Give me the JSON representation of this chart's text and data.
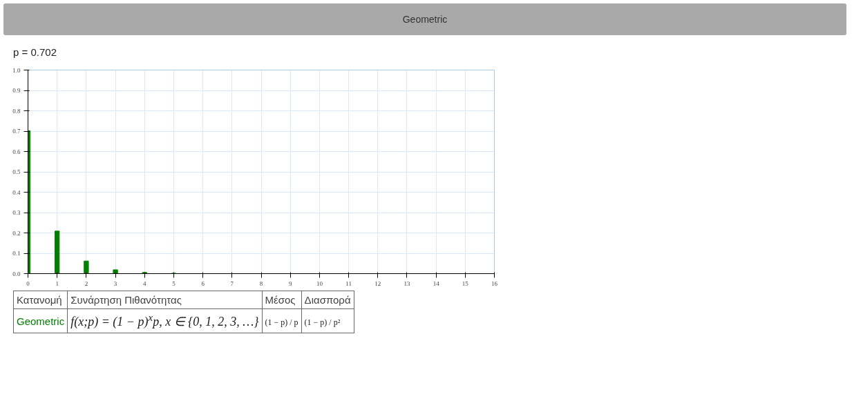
{
  "chart_data": {
    "type": "bar",
    "title": "Geometric",
    "x": [
      0,
      1,
      2,
      3,
      4,
      5,
      6,
      7,
      8,
      9,
      10,
      11,
      12,
      13,
      14,
      15
    ],
    "values": [
      0.702,
      0.209,
      0.062,
      0.019,
      0.006,
      0.002,
      0,
      0,
      0,
      0,
      0,
      0,
      0,
      0,
      0,
      0
    ],
    "color": "#008000",
    "xlim": [
      0,
      16
    ],
    "xticks": [
      0,
      1,
      2,
      3,
      4,
      5,
      6,
      7,
      8,
      9,
      10,
      11,
      12,
      13,
      14,
      15,
      16
    ],
    "ylim": [
      0,
      1
    ],
    "yticks": [
      {
        "value": 0,
        "label": "0.0"
      },
      0.1,
      0.2,
      0.3,
      0.4,
      0.5,
      0.6,
      0.7,
      0.8,
      0.9,
      {
        "value": 1,
        "label": "1.0"
      }
    ],
    "grid": true,
    "annotations": [
      "p = 0.702",
      "Κατανομή",
      "Συνάρτηση Πιθανότητας",
      "Μέσος",
      "Διασπορά",
      "Geometric",
      "f(x;p) = (1 − p)$^{x}$p, x ∈ {0, 1, 2, 3, …}",
      "(1 − p) / p",
      "(1 − p) / p²"
    ]
  }
}
